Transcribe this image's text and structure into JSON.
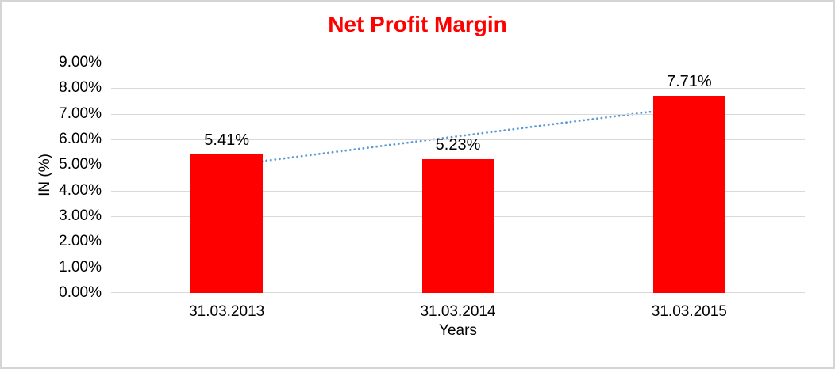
{
  "chart_data": {
    "type": "bar",
    "title": "Net Profit Margin",
    "title_color": "#FF0000",
    "xlabel": "Years",
    "ylabel": "IN (%)",
    "categories": [
      "31.03.2013",
      "31.03.2014",
      "31.03.2015"
    ],
    "values": [
      5.41,
      5.23,
      7.71
    ],
    "data_labels": [
      "5.41%",
      "5.23%",
      "7.71%"
    ],
    "y_tick_labels": [
      "9.00%",
      "8.00%",
      "7.00%",
      "6.00%",
      "5.00%",
      "4.00%",
      "3.00%",
      "2.00%",
      "1.00%",
      "0.00%"
    ],
    "ylim": [
      0,
      9
    ],
    "grid": true,
    "legend": false,
    "bar_color": "#FF0000",
    "gridline_color": "#D9D9D9",
    "axis_text_color": "#000000",
    "trendline": {
      "type": "linear",
      "style": "dotted",
      "color": "#5B9BD5",
      "start_value": 4.97,
      "end_value": 7.27
    }
  }
}
